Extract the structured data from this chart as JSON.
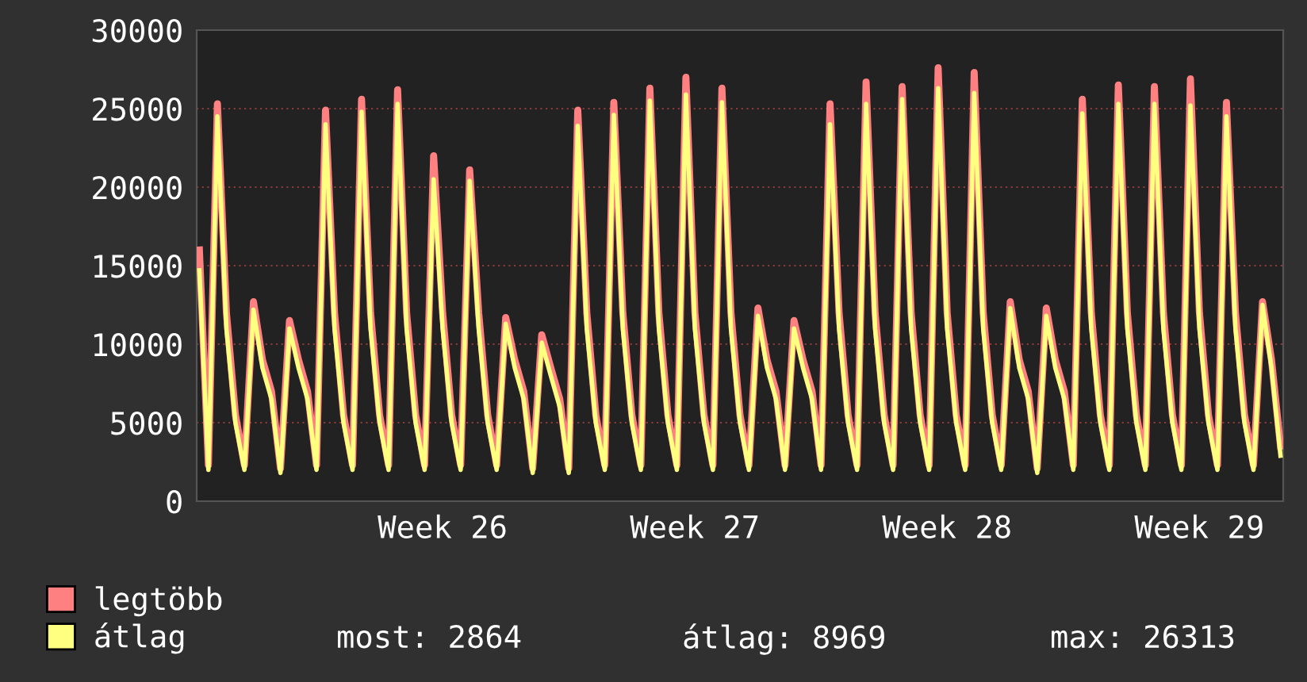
{
  "chart_data": {
    "type": "line",
    "categories": [
      null,
      null,
      null,
      null,
      null,
      null,
      null,
      null,
      null,
      null,
      null,
      null,
      null,
      null,
      null,
      null,
      null,
      null,
      null,
      null,
      null,
      null,
      null,
      null,
      null,
      null,
      null,
      "Week 26",
      null,
      null,
      null,
      null,
      null,
      null,
      null,
      null,
      null,
      null,
      null,
      null,
      null,
      null,
      null,
      null,
      null,
      null,
      null,
      null,
      null,
      null,
      null,
      null,
      null,
      null,
      null,
      "Week 27",
      null,
      null,
      null,
      null,
      null,
      null,
      null,
      null,
      null,
      null,
      null,
      null,
      null,
      null,
      null,
      null,
      null,
      null,
      null,
      null,
      null,
      null,
      null,
      null,
      null,
      null,
      null,
      "Week 28",
      null,
      null,
      null,
      null,
      null,
      null,
      null,
      null,
      null,
      null,
      null,
      null,
      null,
      null,
      null,
      null,
      null,
      null,
      null,
      null,
      null,
      null,
      null,
      null,
      null,
      null,
      null,
      "Week 29",
      null,
      null,
      null,
      null,
      null,
      null,
      null,
      null,
      null
    ],
    "series": [
      {
        "name": "legtöbb",
        "color": "#ff8080",
        "values": [
          16000,
          2300,
          25300,
          12000,
          5500,
          2300,
          12700,
          9000,
          7000,
          2100,
          11500,
          9000,
          7000,
          2300,
          24900,
          12000,
          5500,
          2300,
          25600,
          12000,
          5500,
          2300,
          26200,
          12000,
          5500,
          2300,
          22000,
          12000,
          5500,
          2300,
          21100,
          12000,
          5500,
          2300,
          11700,
          9000,
          7000,
          2100,
          10600,
          8500,
          6500,
          2100,
          24900,
          12000,
          5500,
          2300,
          25400,
          12000,
          5500,
          2300,
          26300,
          12000,
          5500,
          2300,
          27000,
          12000,
          5500,
          2300,
          26300,
          12000,
          5500,
          2300,
          12300,
          9000,
          7000,
          2300,
          11500,
          9000,
          7000,
          2300,
          25300,
          12000,
          5500,
          2300,
          26700,
          12000,
          5500,
          2300,
          26400,
          12000,
          5500,
          2300,
          27600,
          12000,
          5500,
          2300,
          27300,
          12000,
          5500,
          2300,
          12700,
          9000,
          7000,
          2100,
          12300,
          9000,
          7000,
          2300,
          25600,
          12000,
          5500,
          2300,
          26500,
          12000,
          5500,
          2300,
          26400,
          12000,
          5500,
          2300,
          26900,
          12000,
          5500,
          2300,
          25400,
          12000,
          5500,
          2300,
          12700,
          9000,
          3500
        ]
      },
      {
        "name": "átlag",
        "color": "#ffff80",
        "values": [
          14700,
          2000,
          24500,
          11000,
          5000,
          2000,
          12200,
          8500,
          6500,
          1800,
          11000,
          8500,
          6500,
          2000,
          24000,
          11000,
          5000,
          2000,
          24800,
          11000,
          5000,
          2000,
          25300,
          11000,
          5000,
          2000,
          20500,
          11000,
          5000,
          2000,
          20400,
          11000,
          5000,
          2000,
          11300,
          8500,
          6500,
          1800,
          10100,
          8000,
          6000,
          1800,
          23900,
          11000,
          5000,
          2000,
          24600,
          11000,
          5000,
          2000,
          25500,
          11000,
          5000,
          2000,
          25900,
          11000,
          5000,
          2000,
          25400,
          11000,
          5000,
          2000,
          11800,
          8500,
          6500,
          2000,
          11000,
          8500,
          6500,
          2000,
          24000,
          11000,
          5000,
          2000,
          25300,
          11000,
          5000,
          2000,
          25600,
          11000,
          5000,
          2000,
          26300,
          11000,
          5000,
          2000,
          26000,
          11000,
          5000,
          2000,
          12300,
          8500,
          6500,
          1800,
          11800,
          8500,
          6500,
          2000,
          24700,
          11000,
          5000,
          2000,
          25300,
          11000,
          5000,
          2000,
          25300,
          11000,
          5000,
          2000,
          25200,
          11000,
          5000,
          2000,
          24500,
          11000,
          5000,
          2000,
          12500,
          8500,
          2900
        ]
      }
    ],
    "ylim": [
      0,
      30000
    ],
    "yticks": [
      0,
      5000,
      10000,
      15000,
      20000,
      25000,
      30000
    ],
    "grid": "y",
    "legend": "bottom left",
    "marker": "none",
    "line_style": "solid",
    "annotations": [
      "most: 2864",
      "átlag: 8969",
      "max: 26313"
    ]
  }
}
